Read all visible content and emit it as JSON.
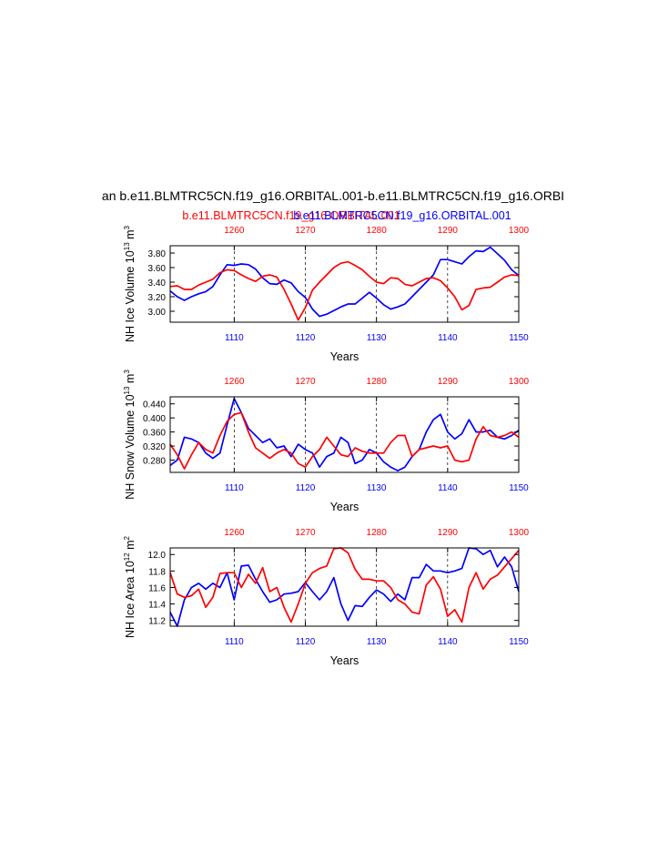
{
  "header": {
    "main_title": "an b.e11.BLMTRC5CN.f19_g16.ORBITAL.001-b.e11.BLMTRC5CN.f19_g16.ORBI",
    "legend_red": "b.e11.BLMTRC5CN.f19_g16.ORBITAL.001",
    "legend_blue": "b.e11.BLMTRC5CN.f19_g16.ORBITAL.001",
    "red_color": "#ff0000",
    "blue_color": "#0000ff"
  },
  "chart_data": [
    {
      "type": "line",
      "ylabel_base": "NH Ice Volume 10",
      "ylabel_exp": "13",
      "ylabel_unit": " m",
      "ylabel_unit_exp": "3",
      "xlabel": "Years",
      "xlim": [
        1101,
        1150
      ],
      "top_xlim": [
        1251,
        1300
      ],
      "ylim": [
        2.85,
        3.9
      ],
      "yticks": [
        3.0,
        3.2,
        3.4,
        3.6,
        3.8
      ],
      "ytick_labels": [
        "3.00",
        "3.20",
        "3.40",
        "3.60",
        "3.80"
      ],
      "bottom_ticks": [
        1110,
        1120,
        1130,
        1140,
        1150
      ],
      "bottom_tick_labels": [
        "1110",
        "1120",
        "1130",
        "1140",
        "1150"
      ],
      "top_ticks": [
        1260,
        1270,
        1280,
        1290,
        1300
      ],
      "top_tick_labels": [
        "1260",
        "1270",
        "1280",
        "1290",
        "1300"
      ],
      "grid": "dashed vertical lines at 1110, 1120, 1130, 1140",
      "series": [
        {
          "color": "#0000ff",
          "x_axis": "bottom",
          "values": [
            3.28,
            3.2,
            3.15,
            3.2,
            3.24,
            3.27,
            3.34,
            3.5,
            3.64,
            3.63,
            3.65,
            3.64,
            3.58,
            3.46,
            3.38,
            3.37,
            3.43,
            3.39,
            3.27,
            3.19,
            3.03,
            2.93,
            2.96,
            3.01,
            3.06,
            3.1,
            3.1,
            3.18,
            3.26,
            3.18,
            3.09,
            3.03,
            3.06,
            3.1,
            3.2,
            3.3,
            3.4,
            3.5,
            3.71,
            3.71,
            3.68,
            3.65,
            3.75,
            3.83,
            3.82,
            3.88,
            3.79,
            3.7,
            3.57,
            3.49
          ]
        },
        {
          "color": "#ff0000",
          "x_axis": "top",
          "values": [
            3.34,
            3.35,
            3.3,
            3.3,
            3.36,
            3.4,
            3.44,
            3.53,
            3.57,
            3.56,
            3.5,
            3.45,
            3.41,
            3.48,
            3.5,
            3.47,
            3.3,
            3.1,
            2.88,
            3.05,
            3.29,
            3.4,
            3.5,
            3.6,
            3.66,
            3.68,
            3.63,
            3.57,
            3.48,
            3.4,
            3.38,
            3.46,
            3.45,
            3.37,
            3.35,
            3.4,
            3.45,
            3.46,
            3.42,
            3.32,
            3.2,
            3.02,
            3.08,
            3.3,
            3.32,
            3.33,
            3.4,
            3.47,
            3.5,
            3.49
          ]
        }
      ]
    },
    {
      "type": "line",
      "ylabel_base": "NH Snow Volume 10",
      "ylabel_exp": "13",
      "ylabel_unit": " m",
      "ylabel_unit_exp": "3",
      "xlabel": "Years",
      "xlim": [
        1101,
        1150
      ],
      "top_xlim": [
        1251,
        1300
      ],
      "ylim": [
        0.245,
        0.46
      ],
      "yticks": [
        0.28,
        0.32,
        0.36,
        0.4,
        0.44
      ],
      "ytick_labels": [
        "0.280",
        "0.320",
        "0.360",
        "0.400",
        "0.440"
      ],
      "bottom_ticks": [
        1110,
        1120,
        1130,
        1140,
        1150
      ],
      "bottom_tick_labels": [
        "1110",
        "1120",
        "1130",
        "1140",
        "1150"
      ],
      "top_ticks": [
        1260,
        1270,
        1280,
        1290,
        1300
      ],
      "top_tick_labels": [
        "1260",
        "1270",
        "1280",
        "1290",
        "1300"
      ],
      "grid": "dashed vertical lines at 1110, 1120, 1130, 1140",
      "series": [
        {
          "color": "#0000ff",
          "x_axis": "bottom",
          "values": [
            0.265,
            0.28,
            0.345,
            0.34,
            0.33,
            0.3,
            0.285,
            0.3,
            0.38,
            0.455,
            0.415,
            0.37,
            0.35,
            0.33,
            0.34,
            0.315,
            0.32,
            0.29,
            0.325,
            0.31,
            0.3,
            0.26,
            0.29,
            0.3,
            0.345,
            0.33,
            0.27,
            0.28,
            0.31,
            0.3,
            0.275,
            0.26,
            0.25,
            0.26,
            0.29,
            0.31,
            0.36,
            0.395,
            0.41,
            0.36,
            0.34,
            0.355,
            0.395,
            0.36,
            0.36,
            0.365,
            0.345,
            0.34,
            0.35,
            0.365
          ]
        },
        {
          "color": "#ff0000",
          "x_axis": "top",
          "values": [
            0.325,
            0.295,
            0.255,
            0.295,
            0.33,
            0.31,
            0.3,
            0.35,
            0.39,
            0.41,
            0.415,
            0.36,
            0.315,
            0.3,
            0.285,
            0.3,
            0.31,
            0.3,
            0.27,
            0.26,
            0.29,
            0.31,
            0.345,
            0.32,
            0.295,
            0.29,
            0.315,
            0.305,
            0.3,
            0.3,
            0.3,
            0.33,
            0.35,
            0.35,
            0.29,
            0.31,
            0.315,
            0.32,
            0.315,
            0.32,
            0.28,
            0.275,
            0.28,
            0.34,
            0.375,
            0.35,
            0.345,
            0.35,
            0.36,
            0.345
          ]
        }
      ]
    },
    {
      "type": "line",
      "ylabel_base": "NH Ice Area 10",
      "ylabel_exp": "12",
      "ylabel_unit": " m",
      "ylabel_unit_exp": "2",
      "xlabel": "Years",
      "xlim": [
        1101,
        1150
      ],
      "top_xlim": [
        1251,
        1300
      ],
      "ylim": [
        11.13,
        12.08
      ],
      "yticks": [
        11.2,
        11.4,
        11.6,
        11.8,
        12.0
      ],
      "ytick_labels": [
        "11.2",
        "11.4",
        "11.6",
        "11.8",
        "12.0"
      ],
      "bottom_ticks": [
        1110,
        1120,
        1130,
        1140,
        1150
      ],
      "bottom_tick_labels": [
        "1110",
        "1120",
        "1130",
        "1140",
        "1150"
      ],
      "top_ticks": [
        1260,
        1270,
        1280,
        1290,
        1300
      ],
      "top_tick_labels": [
        "1260",
        "1270",
        "1280",
        "1290",
        "1300"
      ],
      "grid": "dashed vertical lines at 1110, 1120, 1130, 1140",
      "series": [
        {
          "color": "#0000ff",
          "x_axis": "bottom",
          "values": [
            11.3,
            11.13,
            11.45,
            11.6,
            11.65,
            11.58,
            11.65,
            11.6,
            11.78,
            11.45,
            11.86,
            11.87,
            11.7,
            11.55,
            11.42,
            11.45,
            11.52,
            11.53,
            11.55,
            11.66,
            11.55,
            11.45,
            11.55,
            11.72,
            11.4,
            11.2,
            11.38,
            11.37,
            11.48,
            11.57,
            11.52,
            11.43,
            11.52,
            11.45,
            11.72,
            11.72,
            11.88,
            11.8,
            11.8,
            11.78,
            11.8,
            11.83,
            12.08,
            12.07,
            12.0,
            12.05,
            11.85,
            11.97,
            11.85,
            11.55
          ]
        },
        {
          "color": "#ff0000",
          "x_axis": "top",
          "values": [
            11.78,
            11.52,
            11.48,
            11.5,
            11.58,
            11.36,
            11.48,
            11.77,
            11.78,
            11.78,
            11.6,
            11.76,
            11.65,
            11.84,
            11.55,
            11.6,
            11.36,
            11.18,
            11.4,
            11.65,
            11.78,
            11.83,
            11.86,
            12.07,
            12.08,
            12.02,
            11.82,
            11.7,
            11.7,
            11.68,
            11.68,
            11.6,
            11.45,
            11.4,
            11.3,
            11.28,
            11.63,
            11.73,
            11.58,
            11.25,
            11.33,
            11.18,
            11.6,
            11.78,
            11.58,
            11.7,
            11.75,
            11.85,
            11.95,
            12.05
          ]
        }
      ]
    }
  ]
}
